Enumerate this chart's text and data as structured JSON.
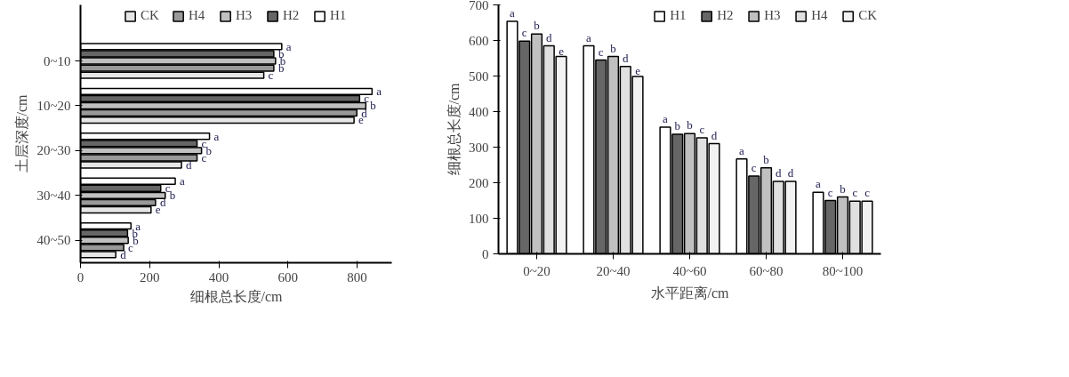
{
  "chart_data": [
    {
      "type": "bar",
      "orientation": "horizontal",
      "ylabel": "土层深度/cm",
      "xlabel": "细根总长度/cm",
      "categories": [
        "0~10",
        "10~20",
        "20~30",
        "30~40",
        "40~50"
      ],
      "xlim": [
        0,
        900
      ],
      "xticks": [
        0,
        200,
        400,
        600,
        800
      ],
      "grid": false,
      "legend": "top",
      "series": [
        {
          "name": "CK",
          "color": "#e6e6e6",
          "values": [
            530,
            791,
            292,
            204,
            102
          ],
          "value_labels": [
            "c",
            "e",
            "d",
            "e",
            "d"
          ]
        },
        {
          "name": "H4",
          "color": "#999999",
          "values": [
            559,
            799,
            337,
            217,
            125
          ],
          "value_labels": [
            "b",
            "d",
            "c",
            "d",
            "c"
          ]
        },
        {
          "name": "H3",
          "color": "#c0c0c0",
          "values": [
            564,
            825,
            350,
            245,
            138
          ],
          "value_labels": [
            "b",
            "b",
            "b",
            "b",
            "b"
          ]
        },
        {
          "name": "H2",
          "color": "#666666",
          "values": [
            559,
            807,
            337,
            232,
            136
          ],
          "value_labels": [
            "b",
            "c",
            "c",
            "c",
            "b"
          ]
        },
        {
          "name": "H1",
          "color": "#ffffff",
          "values": [
            582,
            843,
            373,
            274,
            146
          ],
          "value_labels": [
            "a",
            "a",
            "a",
            "a",
            "a"
          ]
        }
      ]
    },
    {
      "type": "bar",
      "ylabel": "细根总长度/cm",
      "xlabel": "水平距离/cm",
      "categories": [
        "0~20",
        "20~40",
        "40~60",
        "60~80",
        "80~100"
      ],
      "ylim": [
        0,
        700
      ],
      "yticks": [
        0,
        100,
        200,
        300,
        400,
        500,
        600,
        700
      ],
      "grid": false,
      "legend": "top right",
      "series": [
        {
          "name": "H1",
          "color": "#ffffff",
          "values": [
            654,
            585,
            356,
            267,
            173
          ],
          "value_labels": [
            "a",
            "a",
            "a",
            "a",
            "a"
          ]
        },
        {
          "name": "H2",
          "color": "#666666",
          "values": [
            598,
            545,
            336,
            219,
            150
          ],
          "value_labels": [
            "c",
            "c",
            "b",
            "c",
            "c"
          ]
        },
        {
          "name": "H3",
          "color": "#c0c0c0",
          "values": [
            618,
            555,
            338,
            242,
            160
          ],
          "value_labels": [
            "b",
            "b",
            "b",
            "b",
            "b"
          ]
        },
        {
          "name": "H4",
          "color": "#e0e0e0",
          "values": [
            585,
            527,
            326,
            204,
            148
          ],
          "value_labels": [
            "d",
            "d",
            "c",
            "d",
            "c"
          ]
        },
        {
          "name": "CK",
          "color": "#f2f2f2",
          "values": [
            555,
            499,
            310,
            204,
            148
          ],
          "value_labels": [
            "e",
            "e",
            "d",
            "d",
            "c"
          ]
        }
      ]
    }
  ]
}
